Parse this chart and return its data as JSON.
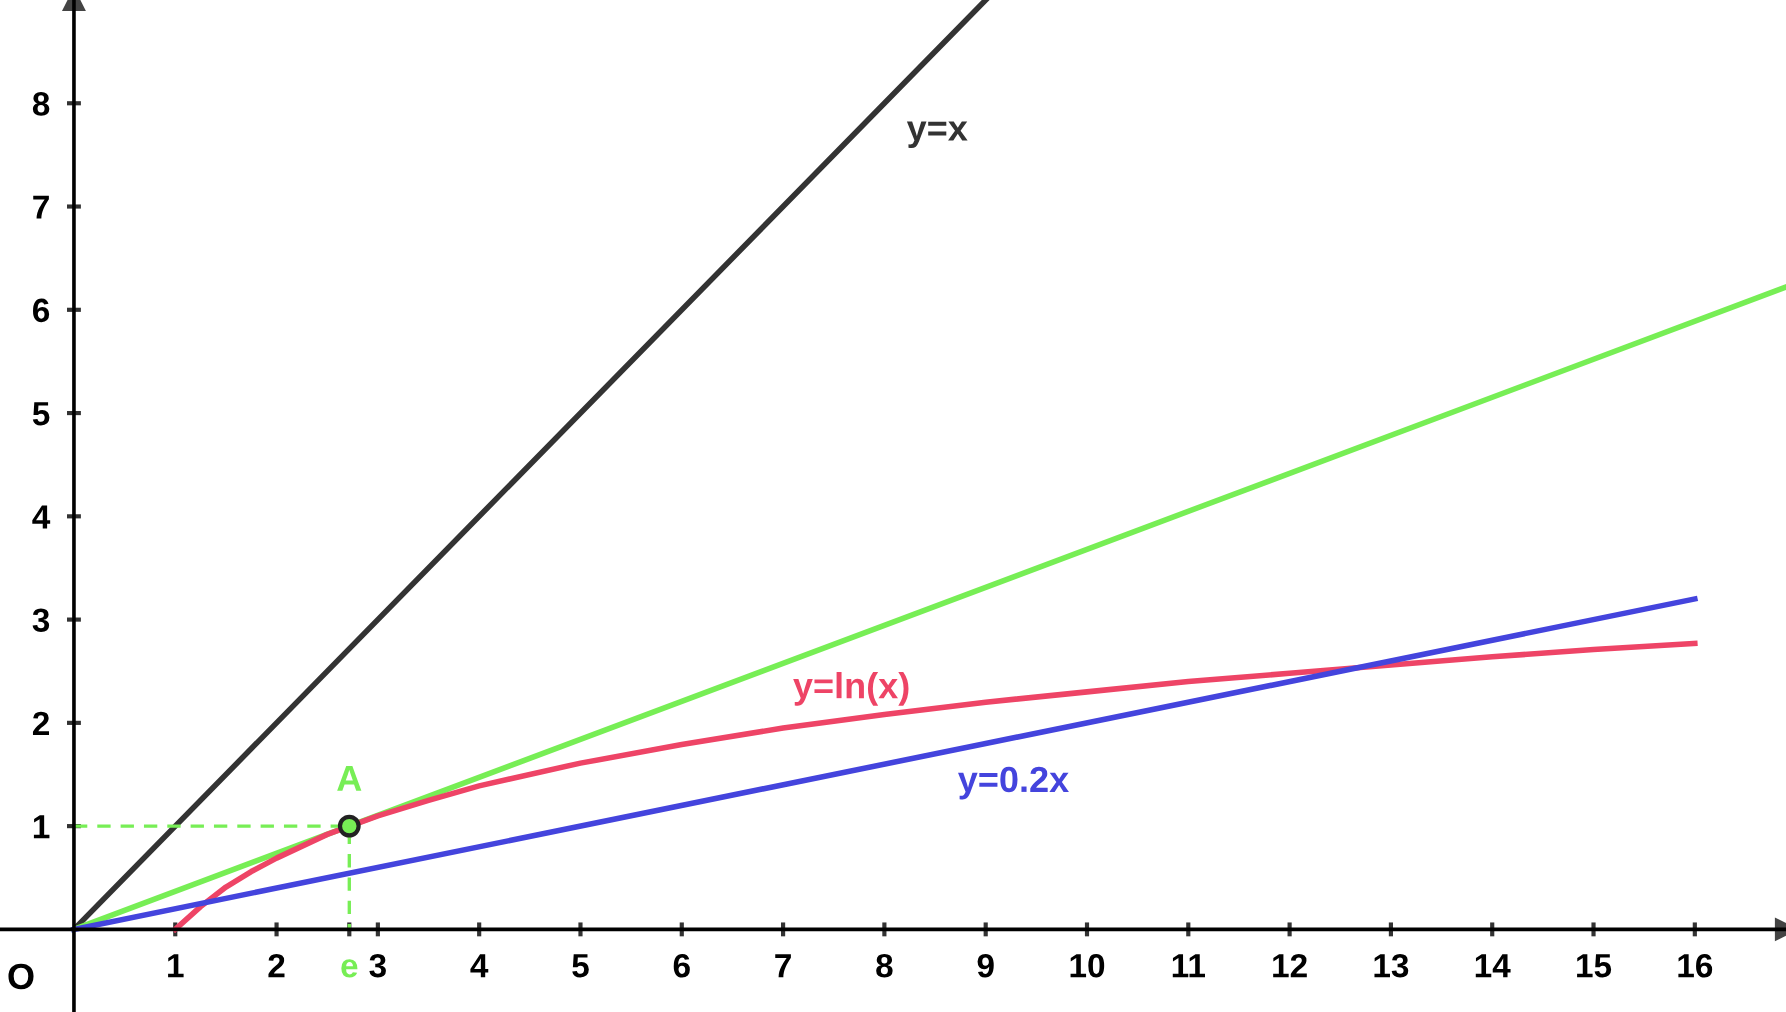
{
  "chart_data": {
    "type": "line",
    "xlim": [
      -0.73,
      16.9
    ],
    "ylim": [
      -0.8,
      9.0
    ],
    "xticks": [
      1,
      2,
      {
        "value": 2.718,
        "label": "e"
      },
      3,
      4,
      5,
      6,
      7,
      8,
      9,
      10,
      11,
      12,
      13,
      14,
      15,
      16
    ],
    "yticks": [
      1,
      2,
      3,
      4,
      5,
      6,
      7,
      8
    ],
    "grid": false,
    "legend": false,
    "series": [
      {
        "name": "y=x",
        "color": "#333333",
        "x": [
          0,
          8,
          9
        ],
        "values": [
          0,
          8,
          9
        ]
      },
      {
        "color": "#77ee55",
        "x": [
          0,
          16.9
        ],
        "values": [
          0,
          6.22
        ]
      },
      {
        "name": "y=ln(x)",
        "color": "#ee4466",
        "x": [
          1,
          1.25,
          1.5,
          1.75,
          2,
          2.5,
          3,
          3.5,
          4,
          5,
          6,
          7,
          8,
          9,
          10,
          11,
          12,
          13,
          14,
          15,
          16
        ],
        "values": [
          0,
          0.22,
          0.41,
          0.56,
          0.69,
          0.92,
          1.1,
          1.25,
          1.39,
          1.61,
          1.79,
          1.95,
          2.08,
          2.2,
          2.3,
          2.4,
          2.48,
          2.56,
          2.64,
          2.71,
          2.77
        ]
      },
      {
        "name": "y=0.2x",
        "color": "#4444dd",
        "x": [
          0,
          9,
          16
        ],
        "values": [
          0,
          1.8,
          3.2
        ]
      },
      {
        "color": "#77ee55",
        "line_style": "dashed",
        "x": [
          0,
          2.718,
          2.718
        ],
        "values": [
          1,
          1,
          0
        ]
      },
      {
        "name": "A",
        "type": "scatter",
        "marker": "circle",
        "color": "#77ee55",
        "x": [
          2.718
        ],
        "values": [
          1
        ]
      }
    ],
    "annotations": [
      {
        "text": "O",
        "x": 0,
        "y": 0
      }
    ]
  }
}
